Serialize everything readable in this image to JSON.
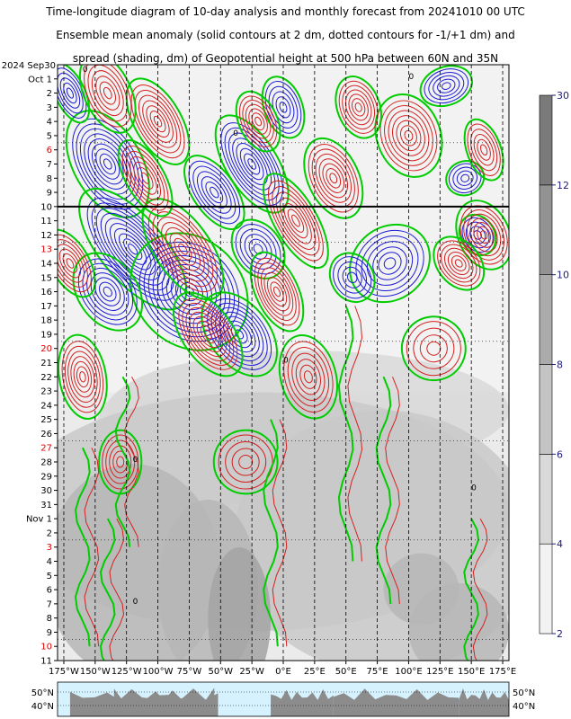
{
  "title_lines": [
    "Time-longitude diagram of 10-day analysis and monthly forecast from 20241010 00 UTC",
    "Ensemble mean anomaly (solid contours at 2 dm, dotted contours for -1/+1 dm) and",
    "spread (shading, dm) of Geopotential height at 500 hPa between 60N and 35N"
  ],
  "chart_data": {
    "type": "heatmap",
    "title": "Time-longitude diagram of 10-day analysis and monthly forecast from 20241010 00 UTC",
    "x_axis": {
      "tick_labels": [
        "175°W",
        "150°W",
        "125°W",
        "100°W",
        "75°W",
        "50°W",
        "25°W",
        "0°E",
        "25°E",
        "50°E",
        "75°E",
        "100°E",
        "125°E",
        "150°E",
        "175°E"
      ],
      "range": [
        -180,
        180
      ]
    },
    "y_axis": {
      "start_label": "2024 Sep30",
      "rows": [
        {
          "label": "Oct  1",
          "red": false
        },
        {
          "label": "2",
          "red": false
        },
        {
          "label": "3",
          "red": false
        },
        {
          "label": "4",
          "red": false
        },
        {
          "label": "5",
          "red": false
        },
        {
          "label": "6",
          "red": true
        },
        {
          "label": "7",
          "red": false
        },
        {
          "label": "8",
          "red": false
        },
        {
          "label": "9",
          "red": false
        },
        {
          "label": "10",
          "red": false
        },
        {
          "label": "11",
          "red": false
        },
        {
          "label": "12",
          "red": false
        },
        {
          "label": "13",
          "red": true
        },
        {
          "label": "14",
          "red": false
        },
        {
          "label": "15",
          "red": false
        },
        {
          "label": "16",
          "red": false
        },
        {
          "label": "17",
          "red": false
        },
        {
          "label": "18",
          "red": false
        },
        {
          "label": "19",
          "red": false
        },
        {
          "label": "20",
          "red": true
        },
        {
          "label": "21",
          "red": false
        },
        {
          "label": "22",
          "red": false
        },
        {
          "label": "23",
          "red": false
        },
        {
          "label": "24",
          "red": false
        },
        {
          "label": "25",
          "red": false
        },
        {
          "label": "26",
          "red": false
        },
        {
          "label": "27",
          "red": true
        },
        {
          "label": "28",
          "red": false
        },
        {
          "label": "29",
          "red": false
        },
        {
          "label": "30",
          "red": false
        },
        {
          "label": "31",
          "red": false
        },
        {
          "label": "Nov  1",
          "red": false
        },
        {
          "label": "2",
          "red": false
        },
        {
          "label": "3",
          "red": true
        },
        {
          "label": "4",
          "red": false
        },
        {
          "label": "5",
          "red": false
        },
        {
          "label": "6",
          "red": false
        },
        {
          "label": "7",
          "red": false
        },
        {
          "label": "8",
          "red": false
        },
        {
          "label": "9",
          "red": false
        },
        {
          "label": "10",
          "red": true
        },
        {
          "label": "11",
          "red": false
        }
      ],
      "analysis_end_row": 10
    },
    "colorbar": {
      "levels": [
        2,
        4,
        6,
        8,
        10,
        12,
        30
      ],
      "colors": [
        "#f2f2f2",
        "#d9d9d9",
        "#c4c4c4",
        "#ababab",
        "#939393",
        "#7a7a7a"
      ]
    },
    "contour_colors": {
      "positive": "#d62020",
      "negative": "#1c1cd6",
      "zero": "#00cc00",
      "zero_label": "0"
    },
    "map_strip": {
      "lat_labels": [
        "50°N",
        "40°N"
      ],
      "ocean": "#d6f2ff",
      "land": "#8c8c8c"
    },
    "grid": true
  }
}
